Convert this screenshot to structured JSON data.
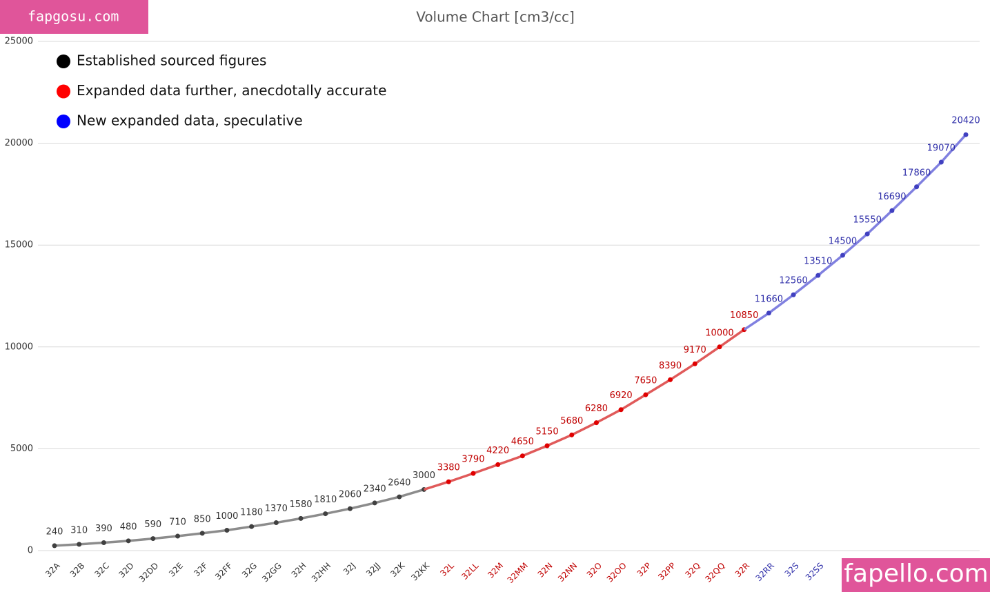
{
  "chart_data": {
    "type": "line",
    "title": "Volume Chart [cm3/cc]",
    "watermarks": [
      "fapgosu.com",
      "fapello.com"
    ],
    "categories": [
      "32A",
      "32B",
      "32C",
      "32D",
      "32DD",
      "32E",
      "32F",
      "32FF",
      "32G",
      "32GG",
      "32H",
      "32HH",
      "32J",
      "32JJ",
      "32K",
      "32KK",
      "32L",
      "32LL",
      "32M",
      "32MM",
      "32N",
      "32NN",
      "32O",
      "32OO",
      "32P",
      "32PP",
      "32Q",
      "32QQ",
      "32R",
      "32RR",
      "32S",
      "32SS",
      null,
      null,
      null,
      null,
      null,
      null
    ],
    "series": [
      {
        "name": "Established sourced figures",
        "color": "#8c8c8c",
        "marker_color": "#404040",
        "label_color": "#333333",
        "legend_color": "#000000",
        "values": [
          240,
          310,
          390,
          480,
          590,
          710,
          850,
          1000,
          1180,
          1370,
          1580,
          1810,
          2060,
          2340,
          2640,
          3000,
          null,
          null,
          null,
          null,
          null,
          null,
          null,
          null,
          null,
          null,
          null,
          null,
          null,
          null,
          null,
          null,
          null,
          null,
          null,
          null,
          null,
          null
        ]
      },
      {
        "name": "Expanded data further, anecdotally accurate",
        "color": "#e05a5a",
        "marker_color": "#e00000",
        "label_color": "#c00000",
        "legend_color": "#ff0000",
        "values": [
          null,
          null,
          null,
          null,
          null,
          null,
          null,
          null,
          null,
          null,
          null,
          null,
          null,
          null,
          null,
          null,
          3380,
          3790,
          4220,
          4650,
          5150,
          5680,
          6280,
          6920,
          7650,
          8390,
          9170,
          10000,
          10850,
          null,
          null,
          null,
          null,
          null,
          null,
          null,
          null,
          null
        ]
      },
      {
        "name": "New expanded data, speculative",
        "color": "#8080e0",
        "marker_color": "#4040c0",
        "label_color": "#2c2ca8",
        "legend_color": "#0000ff",
        "values": [
          null,
          null,
          null,
          null,
          null,
          null,
          null,
          null,
          null,
          null,
          null,
          null,
          null,
          null,
          null,
          null,
          null,
          null,
          null,
          null,
          null,
          null,
          null,
          null,
          null,
          null,
          null,
          null,
          null,
          11660,
          12560,
          13510,
          14500,
          15550,
          16690,
          17860,
          19070,
          20420
        ]
      }
    ],
    "ylim": [
      0,
      25000
    ],
    "yticks": [
      0,
      5000,
      10000,
      15000,
      20000,
      25000
    ],
    "grid": true,
    "legend": "upper left"
  }
}
